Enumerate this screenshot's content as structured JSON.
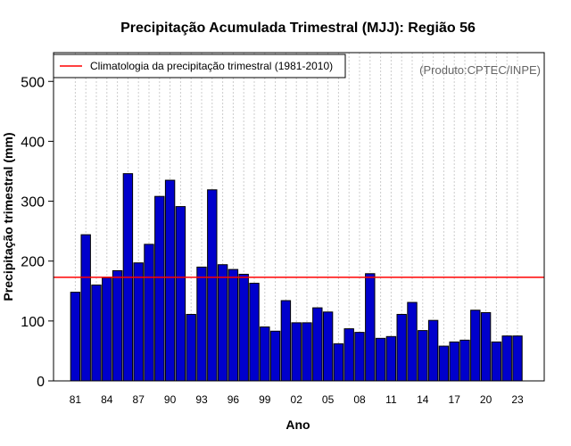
{
  "chart_data": {
    "type": "bar",
    "title": "Precipitação Acumulada Trimestral (MJJ): Região 56",
    "xlabel": "Ano",
    "ylabel": "Precipitação trimestral (mm)",
    "credit": "(Produto:CPTEC/INPE)",
    "ylim": [
      0,
      545
    ],
    "yticks": [
      "0",
      "100",
      "200",
      "300",
      "400",
      "500"
    ],
    "xtick_labels": [
      "81",
      "84",
      "87",
      "90",
      "93",
      "96",
      "99",
      "02",
      "05",
      "08",
      "11",
      "14",
      "17",
      "20",
      "23"
    ],
    "categories": [
      1981,
      1982,
      1983,
      1984,
      1985,
      1986,
      1987,
      1988,
      1989,
      1990,
      1991,
      1992,
      1993,
      1994,
      1995,
      1996,
      1997,
      1998,
      1999,
      2000,
      2001,
      2002,
      2003,
      2004,
      2005,
      2006,
      2007,
      2008,
      2009,
      2010,
      2011,
      2012,
      2013,
      2014,
      2015,
      2016,
      2017,
      2018,
      2019,
      2020,
      2021,
      2022,
      2023
    ],
    "values": [
      148,
      244,
      160,
      172,
      184,
      346,
      197,
      228,
      308,
      335,
      291,
      111,
      190,
      319,
      194,
      186,
      178,
      163,
      90,
      83,
      134,
      97,
      97,
      122,
      115,
      62,
      87,
      81,
      179,
      71,
      74,
      111,
      131,
      84,
      101,
      58,
      65,
      68,
      118,
      114,
      65,
      75,
      75
    ],
    "climatology": {
      "label": "Climatologia da precipitação trimestral (1981-2010)",
      "value": 173
    },
    "colors": {
      "bar_fill": "#0000cc",
      "bar_stroke": "#000000",
      "climatology_line": "#ff0000",
      "grid": "#cccccc"
    }
  }
}
